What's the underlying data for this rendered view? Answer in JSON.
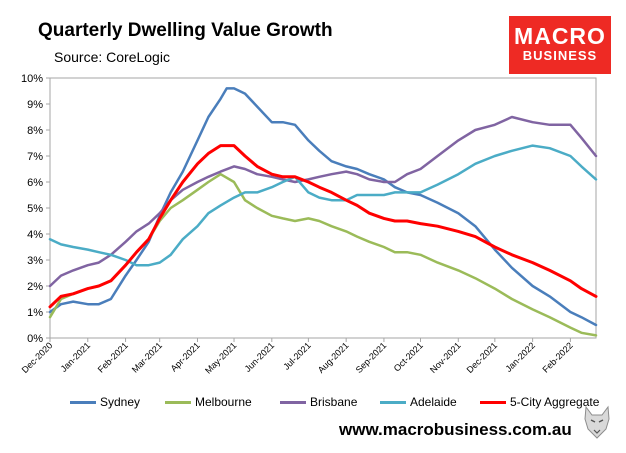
{
  "header": {
    "title": "Quarterly Dwelling Value Growth",
    "subtitle": "Source: CoreLogic"
  },
  "logo": {
    "line1": "MACRO",
    "line2": "BUSINESS",
    "color": "#ee2a24"
  },
  "footer": {
    "website": "www.macrobusiness.com.au",
    "wolf_icon": "wolf-head-icon"
  },
  "chart_data": {
    "type": "line",
    "title": "Quarterly Dwelling Value Growth",
    "xlabel": "",
    "ylabel": "",
    "ylim": [
      0,
      10
    ],
    "xlim": [
      "2020-12-01",
      "2022-02-22"
    ],
    "y_ticks": [
      "0%",
      "1%",
      "2%",
      "3%",
      "4%",
      "5%",
      "6%",
      "7%",
      "8%",
      "9%",
      "10%"
    ],
    "x_ticks": [
      {
        "date": "2020-12-01",
        "label": "Dec-2020"
      },
      {
        "date": "2021-01-01",
        "label": "Jan-2021"
      },
      {
        "date": "2021-02-01",
        "label": "Feb-2021"
      },
      {
        "date": "2021-03-01",
        "label": "Mar-2021"
      },
      {
        "date": "2021-04-01",
        "label": "Apr-2021"
      },
      {
        "date": "2021-05-01",
        "label": "May-2021"
      },
      {
        "date": "2021-06-01",
        "label": "Jun-2021"
      },
      {
        "date": "2021-07-01",
        "label": "Jul-2021"
      },
      {
        "date": "2021-08-01",
        "label": "Aug-2021"
      },
      {
        "date": "2021-09-01",
        "label": "Sep-2021"
      },
      {
        "date": "2021-10-01",
        "label": "Oct-2021"
      },
      {
        "date": "2021-11-01",
        "label": "Nov-2021"
      },
      {
        "date": "2021-12-01",
        "label": "Dec-2021"
      },
      {
        "date": "2022-01-01",
        "label": "Jan-2022"
      },
      {
        "date": "2022-02-01",
        "label": "Feb-2022"
      }
    ],
    "grid": false,
    "legend_position": "bottom",
    "series": [
      {
        "name": "Sydney",
        "color": "#4a7ebb",
        "points": [
          [
            "2020-12-01",
            1.0
          ],
          [
            "2020-12-10",
            1.3
          ],
          [
            "2020-12-20",
            1.4
          ],
          [
            "2021-01-01",
            1.3
          ],
          [
            "2021-01-10",
            1.3
          ],
          [
            "2021-01-20",
            1.5
          ],
          [
            "2021-02-01",
            2.4
          ],
          [
            "2021-02-10",
            3.0
          ],
          [
            "2021-02-20",
            3.7
          ],
          [
            "2021-03-01",
            4.7
          ],
          [
            "2021-03-10",
            5.6
          ],
          [
            "2021-03-20",
            6.4
          ],
          [
            "2021-04-01",
            7.6
          ],
          [
            "2021-04-10",
            8.5
          ],
          [
            "2021-04-20",
            9.2
          ],
          [
            "2021-04-25",
            9.6
          ],
          [
            "2021-05-01",
            9.6
          ],
          [
            "2021-05-10",
            9.4
          ],
          [
            "2021-05-20",
            8.9
          ],
          [
            "2021-06-01",
            8.3
          ],
          [
            "2021-06-10",
            8.3
          ],
          [
            "2021-06-20",
            8.2
          ],
          [
            "2021-07-01",
            7.6
          ],
          [
            "2021-07-10",
            7.2
          ],
          [
            "2021-07-20",
            6.8
          ],
          [
            "2021-08-01",
            6.6
          ],
          [
            "2021-08-10",
            6.5
          ],
          [
            "2021-08-20",
            6.3
          ],
          [
            "2021-09-01",
            6.1
          ],
          [
            "2021-09-10",
            5.8
          ],
          [
            "2021-09-20",
            5.6
          ],
          [
            "2021-10-01",
            5.5
          ],
          [
            "2021-10-15",
            5.2
          ],
          [
            "2021-11-01",
            4.8
          ],
          [
            "2021-11-15",
            4.3
          ],
          [
            "2021-12-01",
            3.4
          ],
          [
            "2021-12-15",
            2.7
          ],
          [
            "2022-01-01",
            2.0
          ],
          [
            "2022-01-15",
            1.6
          ],
          [
            "2022-02-01",
            1.0
          ],
          [
            "2022-02-10",
            0.8
          ],
          [
            "2022-02-22",
            0.5
          ]
        ]
      },
      {
        "name": "Melbourne",
        "color": "#9bbb59",
        "points": [
          [
            "2020-12-01",
            0.8
          ],
          [
            "2020-12-10",
            1.5
          ],
          [
            "2020-12-20",
            1.7
          ],
          [
            "2021-01-01",
            1.9
          ],
          [
            "2021-01-10",
            2.0
          ],
          [
            "2021-01-20",
            2.2
          ],
          [
            "2021-02-01",
            2.8
          ],
          [
            "2021-02-10",
            3.3
          ],
          [
            "2021-02-20",
            3.8
          ],
          [
            "2021-03-01",
            4.5
          ],
          [
            "2021-03-10",
            5.0
          ],
          [
            "2021-03-20",
            5.3
          ],
          [
            "2021-04-01",
            5.7
          ],
          [
            "2021-04-10",
            6.0
          ],
          [
            "2021-04-20",
            6.3
          ],
          [
            "2021-05-01",
            6.0
          ],
          [
            "2021-05-10",
            5.3
          ],
          [
            "2021-05-20",
            5.0
          ],
          [
            "2021-06-01",
            4.7
          ],
          [
            "2021-06-10",
            4.6
          ],
          [
            "2021-06-20",
            4.5
          ],
          [
            "2021-07-01",
            4.6
          ],
          [
            "2021-07-10",
            4.5
          ],
          [
            "2021-07-20",
            4.3
          ],
          [
            "2021-08-01",
            4.1
          ],
          [
            "2021-08-10",
            3.9
          ],
          [
            "2021-08-20",
            3.7
          ],
          [
            "2021-09-01",
            3.5
          ],
          [
            "2021-09-10",
            3.3
          ],
          [
            "2021-09-20",
            3.3
          ],
          [
            "2021-10-01",
            3.2
          ],
          [
            "2021-10-15",
            2.9
          ],
          [
            "2021-11-01",
            2.6
          ],
          [
            "2021-11-15",
            2.3
          ],
          [
            "2021-12-01",
            1.9
          ],
          [
            "2021-12-15",
            1.5
          ],
          [
            "2022-01-01",
            1.1
          ],
          [
            "2022-01-15",
            0.8
          ],
          [
            "2022-02-01",
            0.4
          ],
          [
            "2022-02-10",
            0.2
          ],
          [
            "2022-02-22",
            0.1
          ]
        ]
      },
      {
        "name": "Brisbane",
        "color": "#8064a2",
        "points": [
          [
            "2020-12-01",
            2.0
          ],
          [
            "2020-12-10",
            2.4
          ],
          [
            "2020-12-20",
            2.6
          ],
          [
            "2021-01-01",
            2.8
          ],
          [
            "2021-01-10",
            2.9
          ],
          [
            "2021-01-20",
            3.2
          ],
          [
            "2021-02-01",
            3.7
          ],
          [
            "2021-02-10",
            4.1
          ],
          [
            "2021-02-20",
            4.4
          ],
          [
            "2021-03-01",
            4.8
          ],
          [
            "2021-03-10",
            5.3
          ],
          [
            "2021-03-20",
            5.7
          ],
          [
            "2021-04-01",
            6.0
          ],
          [
            "2021-04-10",
            6.2
          ],
          [
            "2021-04-20",
            6.4
          ],
          [
            "2021-05-01",
            6.6
          ],
          [
            "2021-05-10",
            6.5
          ],
          [
            "2021-05-20",
            6.3
          ],
          [
            "2021-06-01",
            6.2
          ],
          [
            "2021-06-10",
            6.1
          ],
          [
            "2021-06-20",
            6.0
          ],
          [
            "2021-07-01",
            6.1
          ],
          [
            "2021-07-10",
            6.2
          ],
          [
            "2021-07-20",
            6.3
          ],
          [
            "2021-08-01",
            6.4
          ],
          [
            "2021-08-10",
            6.3
          ],
          [
            "2021-08-20",
            6.1
          ],
          [
            "2021-09-01",
            6.0
          ],
          [
            "2021-09-10",
            6.0
          ],
          [
            "2021-09-20",
            6.3
          ],
          [
            "2021-10-01",
            6.5
          ],
          [
            "2021-10-15",
            7.0
          ],
          [
            "2021-11-01",
            7.6
          ],
          [
            "2021-11-15",
            8.0
          ],
          [
            "2021-12-01",
            8.2
          ],
          [
            "2021-12-15",
            8.5
          ],
          [
            "2022-01-01",
            8.3
          ],
          [
            "2022-01-15",
            8.2
          ],
          [
            "2022-02-01",
            8.2
          ],
          [
            "2022-02-10",
            7.7
          ],
          [
            "2022-02-22",
            7.0
          ]
        ]
      },
      {
        "name": "Adelaide",
        "color": "#4bacc6",
        "points": [
          [
            "2020-12-01",
            3.8
          ],
          [
            "2020-12-10",
            3.6
          ],
          [
            "2020-12-20",
            3.5
          ],
          [
            "2021-01-01",
            3.4
          ],
          [
            "2021-01-10",
            3.3
          ],
          [
            "2021-01-20",
            3.2
          ],
          [
            "2021-02-01",
            3.0
          ],
          [
            "2021-02-10",
            2.8
          ],
          [
            "2021-02-20",
            2.8
          ],
          [
            "2021-03-01",
            2.9
          ],
          [
            "2021-03-10",
            3.2
          ],
          [
            "2021-03-20",
            3.8
          ],
          [
            "2021-04-01",
            4.3
          ],
          [
            "2021-04-10",
            4.8
          ],
          [
            "2021-04-20",
            5.1
          ],
          [
            "2021-05-01",
            5.4
          ],
          [
            "2021-05-10",
            5.6
          ],
          [
            "2021-05-20",
            5.6
          ],
          [
            "2021-06-01",
            5.8
          ],
          [
            "2021-06-10",
            6.0
          ],
          [
            "2021-06-20",
            6.2
          ],
          [
            "2021-07-01",
            5.6
          ],
          [
            "2021-07-10",
            5.4
          ],
          [
            "2021-07-20",
            5.3
          ],
          [
            "2021-08-01",
            5.3
          ],
          [
            "2021-08-10",
            5.5
          ],
          [
            "2021-08-20",
            5.5
          ],
          [
            "2021-09-01",
            5.5
          ],
          [
            "2021-09-10",
            5.6
          ],
          [
            "2021-09-20",
            5.6
          ],
          [
            "2021-10-01",
            5.6
          ],
          [
            "2021-10-15",
            5.9
          ],
          [
            "2021-11-01",
            6.3
          ],
          [
            "2021-11-15",
            6.7
          ],
          [
            "2021-12-01",
            7.0
          ],
          [
            "2021-12-15",
            7.2
          ],
          [
            "2022-01-01",
            7.4
          ],
          [
            "2022-01-15",
            7.3
          ],
          [
            "2022-02-01",
            7.0
          ],
          [
            "2022-02-10",
            6.6
          ],
          [
            "2022-02-22",
            6.1
          ]
        ]
      },
      {
        "name": "5-City Aggregate",
        "color": "#ff0000",
        "points": [
          [
            "2020-12-01",
            1.2
          ],
          [
            "2020-12-10",
            1.6
          ],
          [
            "2020-12-20",
            1.7
          ],
          [
            "2021-01-01",
            1.9
          ],
          [
            "2021-01-10",
            2.0
          ],
          [
            "2021-01-20",
            2.2
          ],
          [
            "2021-02-01",
            2.8
          ],
          [
            "2021-02-10",
            3.3
          ],
          [
            "2021-02-20",
            3.8
          ],
          [
            "2021-03-01",
            4.6
          ],
          [
            "2021-03-10",
            5.3
          ],
          [
            "2021-03-20",
            6.0
          ],
          [
            "2021-04-01",
            6.7
          ],
          [
            "2021-04-10",
            7.1
          ],
          [
            "2021-04-20",
            7.4
          ],
          [
            "2021-05-01",
            7.4
          ],
          [
            "2021-05-10",
            7.0
          ],
          [
            "2021-05-20",
            6.6
          ],
          [
            "2021-06-01",
            6.3
          ],
          [
            "2021-06-10",
            6.2
          ],
          [
            "2021-06-20",
            6.2
          ],
          [
            "2021-07-01",
            6.0
          ],
          [
            "2021-07-10",
            5.8
          ],
          [
            "2021-07-20",
            5.6
          ],
          [
            "2021-08-01",
            5.3
          ],
          [
            "2021-08-10",
            5.1
          ],
          [
            "2021-08-20",
            4.8
          ],
          [
            "2021-09-01",
            4.6
          ],
          [
            "2021-09-10",
            4.5
          ],
          [
            "2021-09-20",
            4.5
          ],
          [
            "2021-10-01",
            4.4
          ],
          [
            "2021-10-15",
            4.3
          ],
          [
            "2021-11-01",
            4.1
          ],
          [
            "2021-11-15",
            3.9
          ],
          [
            "2021-12-01",
            3.5
          ],
          [
            "2021-12-15",
            3.2
          ],
          [
            "2022-01-01",
            2.9
          ],
          [
            "2022-01-15",
            2.6
          ],
          [
            "2022-02-01",
            2.2
          ],
          [
            "2022-02-10",
            1.9
          ],
          [
            "2022-02-22",
            1.6
          ]
        ]
      }
    ]
  }
}
